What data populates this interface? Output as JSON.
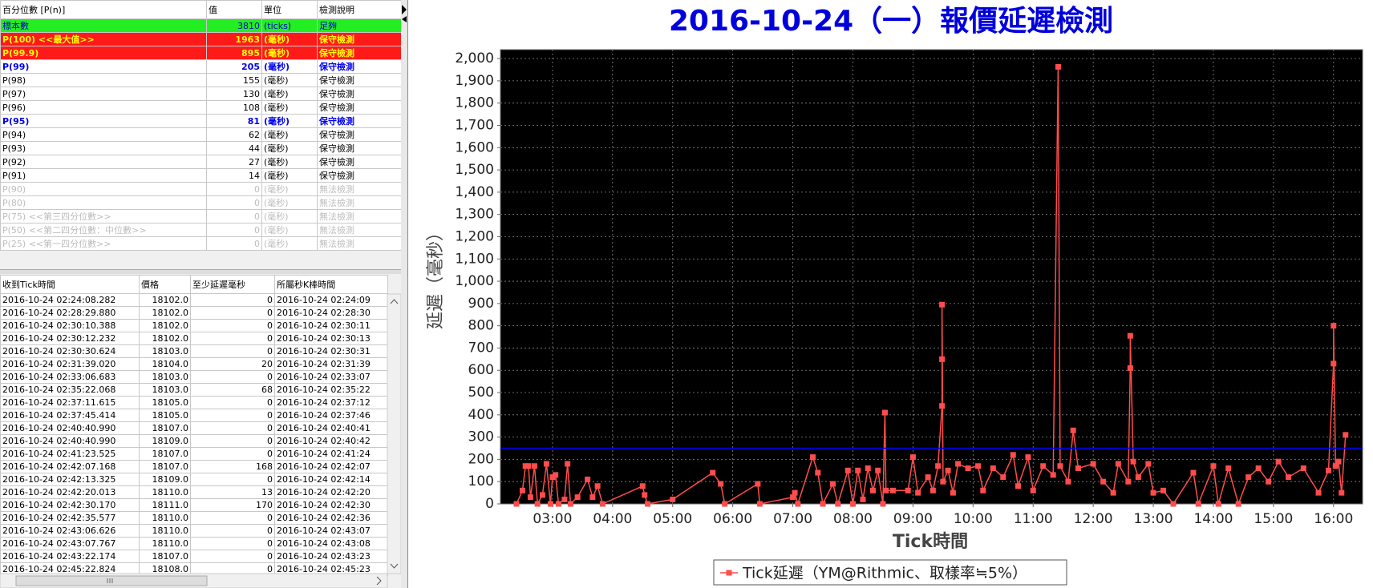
{
  "percentile_table": {
    "headers": [
      "百分位數 [P(n)]",
      "值",
      "單位",
      "檢測說明"
    ],
    "rows": [
      {
        "label": "標本數",
        "value": 3810,
        "unit": "(ticks)",
        "note": "足夠",
        "style": "green"
      },
      {
        "label": "P(100)  <<最大值>>",
        "value": 1963,
        "unit": "(毫秒)",
        "note": "保守檢測",
        "style": "red"
      },
      {
        "label": "P(99.9)",
        "value": 895,
        "unit": "(毫秒)",
        "note": "保守檢測",
        "style": "red"
      },
      {
        "label": "P(99)",
        "value": 205,
        "unit": "(毫秒)",
        "note": "保守檢測",
        "style": "blue"
      },
      {
        "label": "P(98)",
        "value": 155,
        "unit": "(毫秒)",
        "note": "保守檢測",
        "style": "normal"
      },
      {
        "label": "P(97)",
        "value": 130,
        "unit": "(毫秒)",
        "note": "保守檢測",
        "style": "normal"
      },
      {
        "label": "P(96)",
        "value": 108,
        "unit": "(毫秒)",
        "note": "保守檢測",
        "style": "normal"
      },
      {
        "label": "P(95)",
        "value": 81,
        "unit": "(毫秒)",
        "note": "保守檢測",
        "style": "blue"
      },
      {
        "label": "P(94)",
        "value": 62,
        "unit": "(毫秒)",
        "note": "保守檢測",
        "style": "normal"
      },
      {
        "label": "P(93)",
        "value": 44,
        "unit": "(毫秒)",
        "note": "保守檢測",
        "style": "normal"
      },
      {
        "label": "P(92)",
        "value": 27,
        "unit": "(毫秒)",
        "note": "保守檢測",
        "style": "normal"
      },
      {
        "label": "P(91)",
        "value": 14,
        "unit": "(毫秒)",
        "note": "保守檢測",
        "style": "normal"
      },
      {
        "label": "P(90)",
        "value": 0,
        "unit": "(毫秒)",
        "note": "無法檢測",
        "style": "gray"
      },
      {
        "label": "P(80)",
        "value": 0,
        "unit": "(毫秒)",
        "note": "無法檢測",
        "style": "gray"
      },
      {
        "label": "P(75)  <<第三四分位數>>",
        "value": 0,
        "unit": "(毫秒)",
        "note": "無法檢測",
        "style": "gray"
      },
      {
        "label": "P(50)  <<第二四分位數：中位數>>",
        "value": 0,
        "unit": "(毫秒)",
        "note": "無法檢測",
        "style": "gray"
      },
      {
        "label": "P(25)  <<第一四分位數>>",
        "value": 0,
        "unit": "(毫秒)",
        "note": "無法檢測",
        "style": "gray"
      }
    ]
  },
  "tick_table": {
    "headers": [
      "收到Tick時間",
      "價格",
      "至少延遲毫秒",
      "所屬秒K棒時間"
    ],
    "rows": [
      [
        "2016-10-24 02:24:08.282",
        "18102.0",
        0,
        "2016-10-24 02:24:09"
      ],
      [
        "2016-10-24 02:28:29.880",
        "18102.0",
        0,
        "2016-10-24 02:28:30"
      ],
      [
        "2016-10-24 02:30:10.388",
        "18102.0",
        0,
        "2016-10-24 02:30:11"
      ],
      [
        "2016-10-24 02:30:12.232",
        "18102.0",
        0,
        "2016-10-24 02:30:13"
      ],
      [
        "2016-10-24 02:30:30.624",
        "18103.0",
        0,
        "2016-10-24 02:30:31"
      ],
      [
        "2016-10-24 02:31:39.020",
        "18104.0",
        20,
        "2016-10-24 02:31:39"
      ],
      [
        "2016-10-24 02:33:06.683",
        "18103.0",
        0,
        "2016-10-24 02:33:07"
      ],
      [
        "2016-10-24 02:35:22.068",
        "18103.0",
        68,
        "2016-10-24 02:35:22"
      ],
      [
        "2016-10-24 02:37:11.615",
        "18105.0",
        0,
        "2016-10-24 02:37:12"
      ],
      [
        "2016-10-24 02:37:45.414",
        "18105.0",
        0,
        "2016-10-24 02:37:46"
      ],
      [
        "2016-10-24 02:40:40.990",
        "18107.0",
        0,
        "2016-10-24 02:40:41"
      ],
      [
        "2016-10-24 02:40:40.990",
        "18109.0",
        0,
        "2016-10-24 02:40:42"
      ],
      [
        "2016-10-24 02:41:23.525",
        "18107.0",
        0,
        "2016-10-24 02:41:24"
      ],
      [
        "2016-10-24 02:42:07.168",
        "18107.0",
        168,
        "2016-10-24 02:42:07"
      ],
      [
        "2016-10-24 02:42:13.325",
        "18109.0",
        0,
        "2016-10-24 02:42:14"
      ],
      [
        "2016-10-24 02:42:20.013",
        "18110.0",
        13,
        "2016-10-24 02:42:20"
      ],
      [
        "2016-10-24 02:42:30.170",
        "18111.0",
        170,
        "2016-10-24 02:42:30"
      ],
      [
        "2016-10-24 02:42:35.577",
        "18110.0",
        0,
        "2016-10-24 02:42:36"
      ],
      [
        "2016-10-24 02:43:06.626",
        "18110.0",
        0,
        "2016-10-24 02:43:07"
      ],
      [
        "2016-10-24 02:43:07.767",
        "18110.0",
        0,
        "2016-10-24 02:43:08"
      ],
      [
        "2016-10-24 02:43:22.174",
        "18107.0",
        0,
        "2016-10-24 02:43:23"
      ],
      [
        "2016-10-24 02:45:22.824",
        "18108.0",
        0,
        "2016-10-24 02:45:23"
      ]
    ]
  },
  "chart_data": {
    "type": "line",
    "title": "2016-10-24（一）報價延遲檢測",
    "x_label": "Tick時間",
    "y_label": "延遲（毫秒）",
    "x": [
      "02:24",
      "02:30",
      "02:33",
      "02:36",
      "02:38",
      "02:42",
      "02:45",
      "02:50",
      "02:54",
      "02:58",
      "03:00",
      "03:03",
      "03:06",
      "03:12",
      "03:15",
      "03:18",
      "03:25",
      "03:35",
      "03:40",
      "03:45",
      "03:50",
      "04:30",
      "04:32",
      "04:35",
      "05:00",
      "05:40",
      "05:48",
      "05:52",
      "06:25",
      "06:27",
      "07:00",
      "07:02",
      "07:05",
      "07:20",
      "07:25",
      "07:30",
      "07:40",
      "07:45",
      "07:55",
      "08:00",
      "08:05",
      "08:10",
      "08:15",
      "08:20",
      "08:25",
      "08:30",
      "08:32",
      "08:33",
      "08:40",
      "08:55",
      "09:00",
      "09:05",
      "09:15",
      "09:20",
      "09:25",
      "09:29",
      "09:29",
      "09:29",
      "09:30",
      "09:35",
      "09:40",
      "09:45",
      "09:55",
      "10:05",
      "10:10",
      "10:20",
      "10:30",
      "10:40",
      "10:45",
      "10:55",
      "11:00",
      "11:10",
      "11:20",
      "11:25",
      "11:27",
      "11:35",
      "11:40",
      "11:45",
      "12:00",
      "12:10",
      "12:20",
      "12:25",
      "12:35",
      "12:37",
      "12:37",
      "12:40",
      "12:45",
      "12:55",
      "13:00",
      "13:10",
      "13:20",
      "13:40",
      "13:45",
      "14:00",
      "14:05",
      "14:15",
      "14:25",
      "14:35",
      "14:45",
      "14:55",
      "15:05",
      "15:15",
      "15:30",
      "15:45",
      "15:55",
      "16:00",
      "16:00",
      "16:02",
      "16:05",
      "16:08",
      "16:12"
    ],
    "series": [
      {
        "name": "Tick延遲（YM@Rithmic、取樣率≒5%）",
        "color": "#ff4c4c",
        "values": [
          0,
          60,
          170,
          170,
          30,
          170,
          0,
          40,
          180,
          0,
          120,
          130,
          0,
          20,
          180,
          0,
          30,
          110,
          30,
          80,
          0,
          80,
          40,
          0,
          20,
          140,
          90,
          0,
          90,
          0,
          30,
          50,
          0,
          210,
          140,
          0,
          90,
          0,
          150,
          0,
          150,
          20,
          160,
          60,
          150,
          0,
          410,
          60,
          60,
          60,
          210,
          50,
          120,
          60,
          170,
          440,
          650,
          895,
          100,
          150,
          50,
          180,
          160,
          170,
          60,
          160,
          120,
          220,
          80,
          210,
          60,
          170,
          130,
          1963,
          170,
          100,
          330,
          160,
          180,
          100,
          50,
          180,
          100,
          610,
          755,
          190,
          120,
          180,
          50,
          60,
          0,
          140,
          0,
          170,
          0,
          160,
          0,
          120,
          160,
          100,
          190,
          120,
          160,
          50,
          150,
          630,
          800,
          170,
          190,
          50,
          310
        ]
      }
    ],
    "threshold": 250,
    "threshold_color": "#0000ff",
    "xlim": [
      "02:08",
      "16:29"
    ],
    "xticks": [
      "03:00",
      "04:00",
      "05:00",
      "06:00",
      "07:00",
      "08:00",
      "09:00",
      "10:00",
      "11:00",
      "12:00",
      "13:00",
      "14:00",
      "15:00",
      "16:00"
    ],
    "ylim": [
      0,
      2040
    ],
    "yticks": [
      0,
      100,
      200,
      300,
      400,
      500,
      600,
      700,
      800,
      900,
      {
        "value": 1000,
        "label": "1,000"
      },
      {
        "value": 1100,
        "label": "1,100"
      },
      {
        "value": 1200,
        "label": "1,200"
      },
      {
        "value": 1300,
        "label": "1,300"
      },
      {
        "value": 1400,
        "label": "1,400"
      },
      {
        "value": 1500,
        "label": "1,500"
      },
      {
        "value": 1600,
        "label": "1,600"
      },
      {
        "value": 1700,
        "label": "1,700"
      },
      {
        "value": 1800,
        "label": "1,800"
      },
      {
        "value": 1900,
        "label": "1,900"
      },
      {
        "value": 2000,
        "label": "2,000"
      }
    ],
    "grid": true,
    "legend": "bottom"
  }
}
